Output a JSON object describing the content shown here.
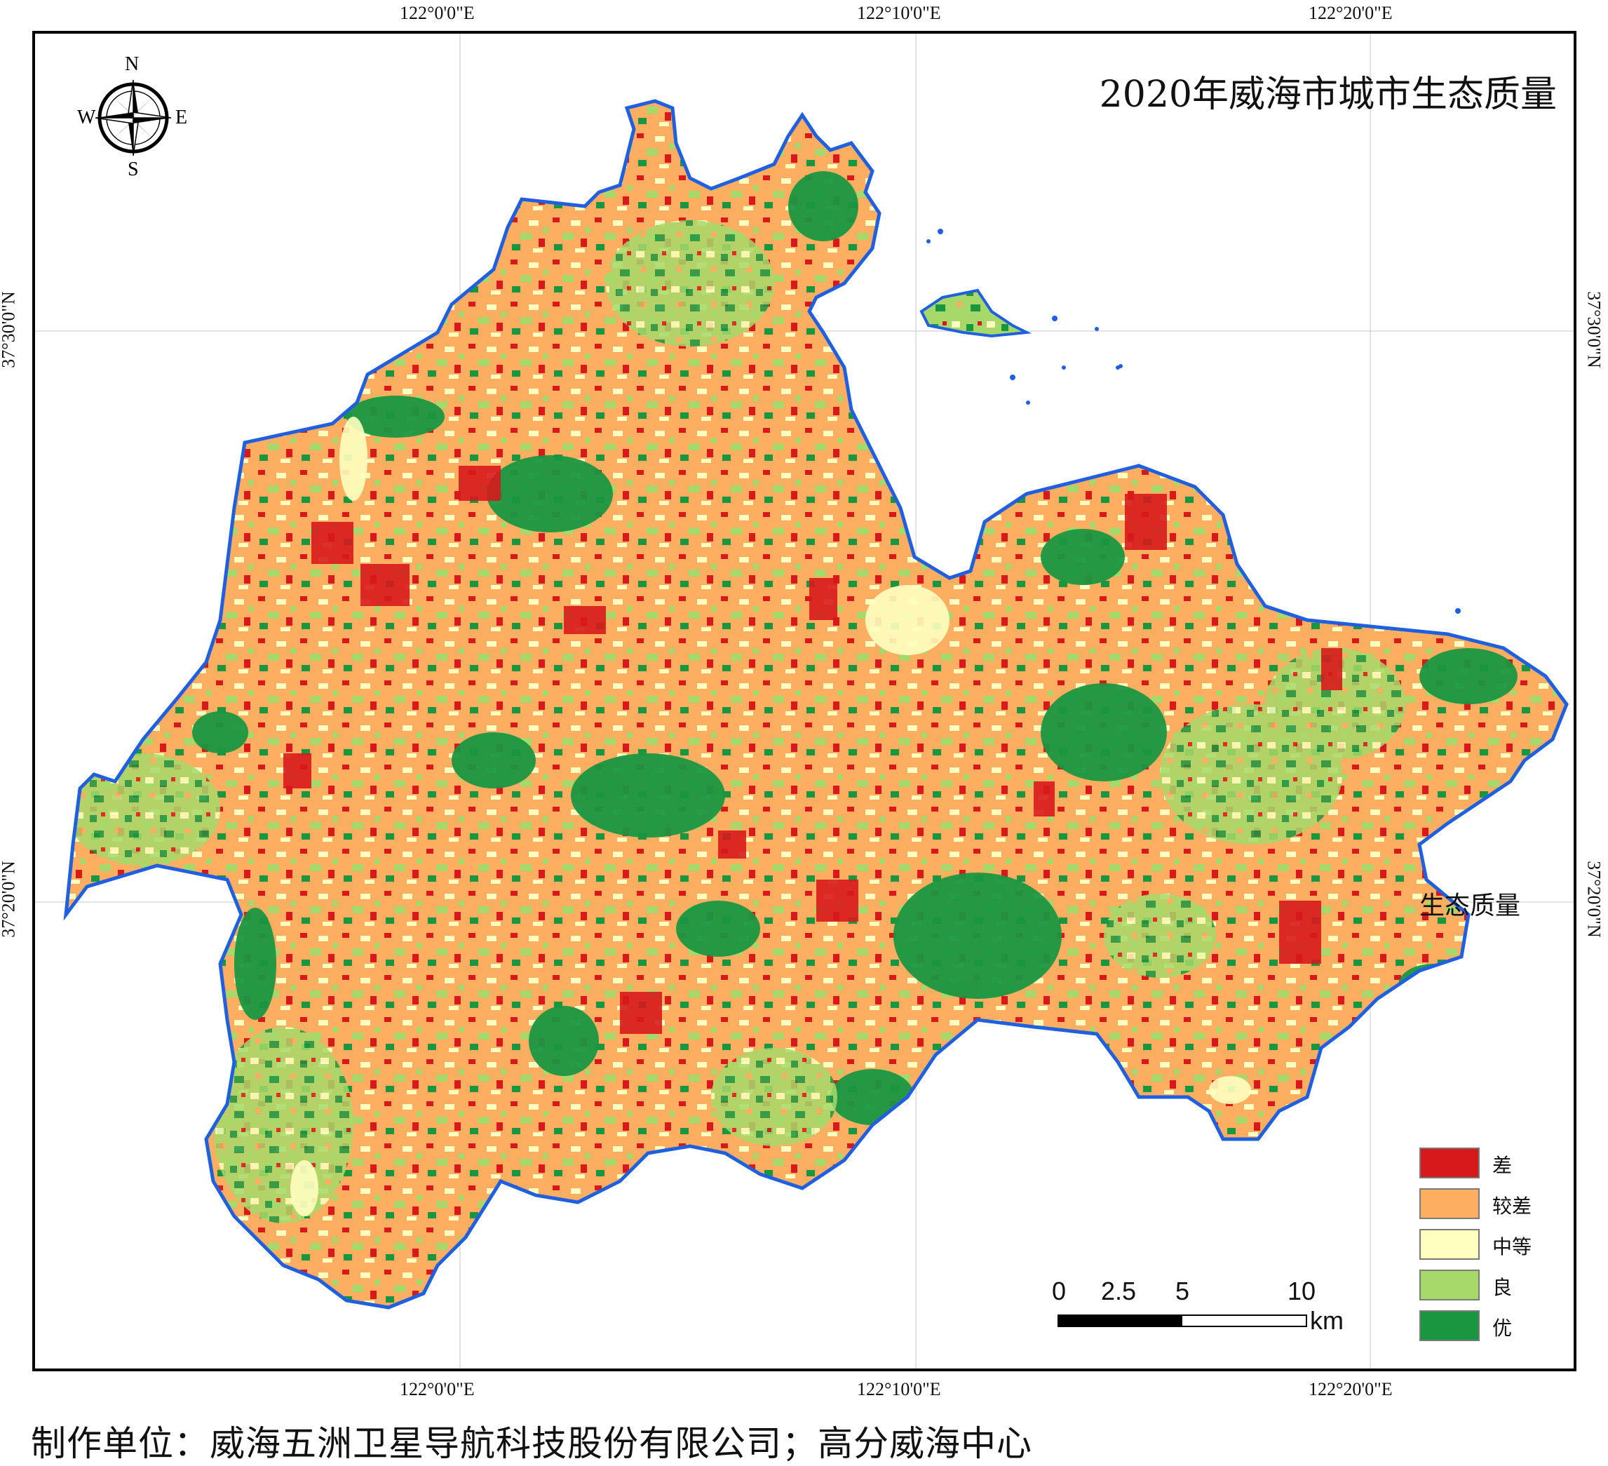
{
  "map": {
    "title": "2020年威海市城市生态质量",
    "north_arrow": {
      "n": "N",
      "s": "S",
      "e": "E",
      "w": "W"
    },
    "top_ticks": [
      "122°0'0\"E",
      "122°10'0\"E",
      "122°20'0\"E"
    ],
    "bottom_ticks": [
      "122°0'0\"E",
      "122°10'0\"E",
      "122°20'0\"E"
    ],
    "left_ticks": [
      "37°30'0\"N",
      "37°20'0\"N"
    ],
    "right_ticks": [
      "37°30'0\"N",
      "37°20'0\"N"
    ],
    "legend": {
      "title": "生态质量",
      "items": [
        {
          "label": "差",
          "color": "#d7191c"
        },
        {
          "label": "较差",
          "color": "#fdae61"
        },
        {
          "label": "中等",
          "color": "#ffffc0"
        },
        {
          "label": "良",
          "color": "#a6d96a"
        },
        {
          "label": "优",
          "color": "#1a9641"
        }
      ]
    },
    "scale_bar": {
      "ticks": [
        "0",
        "2.5",
        "5",
        "10"
      ],
      "unit": "km"
    },
    "coastline_color": "#1f5fe0",
    "sea_color": "#ffffff"
  },
  "footer": "制作单位：威海五洲卫星导航科技股份有限公司；高分威海中心"
}
